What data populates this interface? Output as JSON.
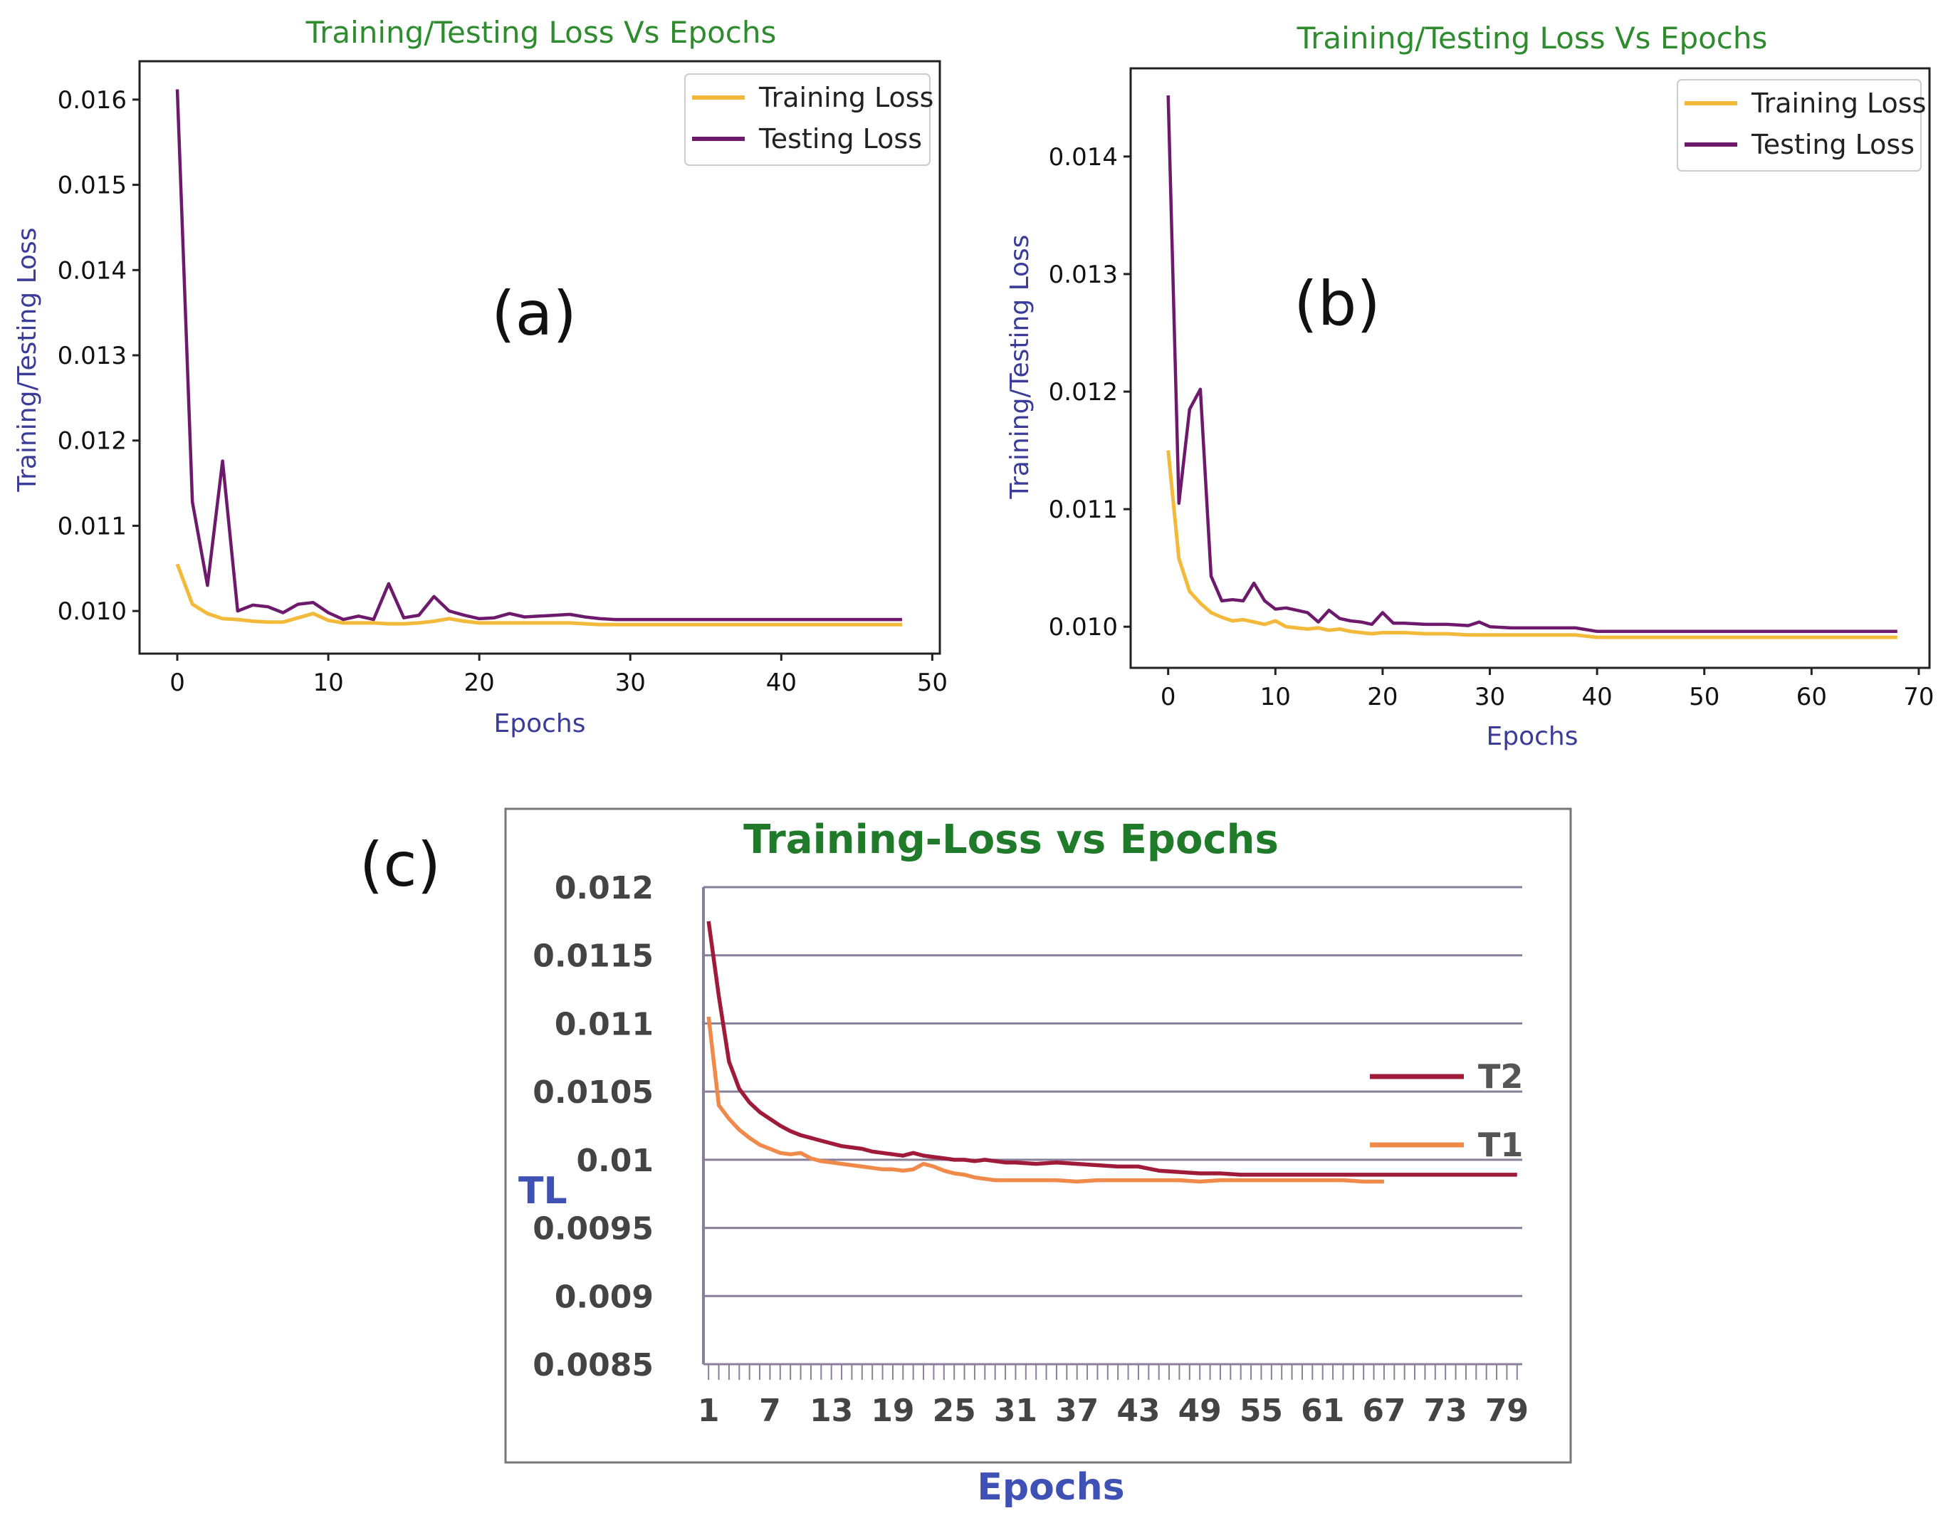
{
  "chart_data": [
    {
      "panel_label": "(a)",
      "type": "line",
      "title": "Training/Testing Loss Vs Epochs",
      "xlabel": "Epochs",
      "ylabel": "Training/Testing Loss",
      "xlim": [
        -2.5,
        50.5
      ],
      "ylim": [
        0.0095,
        0.01645
      ],
      "xticks": [
        0,
        10,
        20,
        30,
        40,
        50
      ],
      "xtick_labels": [
        "0",
        "10",
        "20",
        "30",
        "40",
        "50"
      ],
      "yticks": [
        0.01,
        0.011,
        0.012,
        0.013,
        0.014,
        0.015,
        0.016
      ],
      "ytick_labels": [
        "0.010",
        "0.011",
        "0.012",
        "0.013",
        "0.014",
        "0.015",
        "0.016"
      ],
      "legend": "top-right",
      "series": [
        {
          "name": "Training Loss",
          "color": "#f2b93b",
          "x": [
            0,
            1,
            2,
            3,
            4,
            5,
            6,
            7,
            8,
            9,
            10,
            11,
            12,
            13,
            14,
            15,
            16,
            17,
            18,
            19,
            20,
            21,
            22,
            23,
            24,
            25,
            26,
            27,
            28,
            29,
            30,
            32,
            34,
            36,
            38,
            40,
            42,
            44,
            46,
            48
          ],
          "y": [
            0.01055,
            0.01008,
            0.00997,
            0.00991,
            0.0099,
            0.00988,
            0.00987,
            0.00987,
            0.00992,
            0.00997,
            0.00989,
            0.00986,
            0.00986,
            0.00986,
            0.00985,
            0.00985,
            0.00986,
            0.00988,
            0.00991,
            0.00988,
            0.00986,
            0.00986,
            0.00986,
            0.00986,
            0.00986,
            0.00986,
            0.00986,
            0.00985,
            0.00984,
            0.00984,
            0.00984,
            0.00984,
            0.00984,
            0.00984,
            0.00984,
            0.00984,
            0.00984,
            0.00984,
            0.00984,
            0.00984
          ]
        },
        {
          "name": "Testing Loss",
          "color": "#6d1a6d",
          "x": [
            0,
            1,
            2,
            3,
            4,
            5,
            6,
            7,
            8,
            9,
            10,
            11,
            12,
            13,
            14,
            15,
            16,
            17,
            18,
            19,
            20,
            21,
            22,
            23,
            24,
            25,
            26,
            27,
            28,
            29,
            30,
            32,
            34,
            36,
            38,
            40,
            42,
            44,
            46,
            48
          ],
          "y": [
            0.01612,
            0.01128,
            0.0103,
            0.01176,
            0.01,
            0.01007,
            0.01005,
            0.00998,
            0.01008,
            0.0101,
            0.00998,
            0.0099,
            0.00994,
            0.0099,
            0.01032,
            0.00992,
            0.00995,
            0.01017,
            0.01,
            0.00995,
            0.00991,
            0.00992,
            0.00997,
            0.00993,
            0.00994,
            0.00995,
            0.00996,
            0.00993,
            0.00991,
            0.0099,
            0.0099,
            0.0099,
            0.0099,
            0.0099,
            0.0099,
            0.0099,
            0.0099,
            0.0099,
            0.0099,
            0.0099
          ]
        }
      ]
    },
    {
      "panel_label": "(b)",
      "type": "line",
      "title": "Training/Testing Loss Vs Epochs",
      "xlabel": "Epochs",
      "ylabel": "Training/Testing Loss",
      "xlim": [
        -3.5,
        71
      ],
      "ylim": [
        0.00965,
        0.01475
      ],
      "xticks": [
        0,
        10,
        20,
        30,
        40,
        50,
        60,
        70
      ],
      "xtick_labels": [
        "0",
        "10",
        "20",
        "30",
        "40",
        "50",
        "60",
        "70"
      ],
      "yticks": [
        0.01,
        0.011,
        0.012,
        0.013,
        0.014
      ],
      "ytick_labels": [
        "0.010",
        "0.011",
        "0.012",
        "0.013",
        "0.014"
      ],
      "legend": "top-right",
      "series": [
        {
          "name": "Training Loss",
          "color": "#f2b93b",
          "x": [
            0,
            1,
            2,
            3,
            4,
            5,
            6,
            7,
            8,
            9,
            10,
            11,
            12,
            13,
            14,
            15,
            16,
            17,
            18,
            19,
            20,
            22,
            24,
            26,
            28,
            30,
            32,
            34,
            36,
            38,
            40,
            45,
            50,
            55,
            60,
            65,
            68
          ],
          "y": [
            0.0115,
            0.01058,
            0.0103,
            0.0102,
            0.01012,
            0.01008,
            0.01005,
            0.01006,
            0.01004,
            0.01002,
            0.01005,
            0.01,
            0.00999,
            0.00998,
            0.00999,
            0.00997,
            0.00998,
            0.00996,
            0.00995,
            0.00994,
            0.00995,
            0.00995,
            0.00994,
            0.00994,
            0.00993,
            0.00993,
            0.00993,
            0.00993,
            0.00993,
            0.00993,
            0.00991,
            0.00991,
            0.00991,
            0.00991,
            0.00991,
            0.00991,
            0.00991
          ]
        },
        {
          "name": "Testing Loss",
          "color": "#6d1a6d",
          "x": [
            0,
            1,
            2,
            3,
            4,
            5,
            6,
            7,
            8,
            9,
            10,
            11,
            12,
            13,
            14,
            15,
            16,
            17,
            18,
            19,
            20,
            21,
            22,
            24,
            26,
            28,
            29,
            30,
            32,
            34,
            36,
            38,
            40,
            45,
            50,
            55,
            60,
            65,
            68
          ],
          "y": [
            0.01452,
            0.01105,
            0.01185,
            0.01202,
            0.01043,
            0.01022,
            0.01023,
            0.01022,
            0.01037,
            0.01022,
            0.01015,
            0.01016,
            0.01014,
            0.01012,
            0.01004,
            0.01014,
            0.01007,
            0.01005,
            0.01004,
            0.01002,
            0.01012,
            0.01003,
            0.01003,
            0.01002,
            0.01002,
            0.01001,
            0.01004,
            0.01,
            0.00999,
            0.00999,
            0.00999,
            0.00999,
            0.00996,
            0.00996,
            0.00996,
            0.00996,
            0.00996,
            0.00996,
            0.00996
          ]
        }
      ]
    },
    {
      "panel_label": "(c)",
      "type": "line",
      "title": "Training-Loss vs Epochs",
      "xlabel": "Epochs",
      "ylabel": "TL",
      "xlim": [
        0.5,
        80.5
      ],
      "ylim": [
        0.0085,
        0.012
      ],
      "xtick_labels": [
        "1",
        "7",
        "13",
        "19",
        "25",
        "31",
        "37",
        "43",
        "49",
        "55",
        "61",
        "67",
        "73",
        "79"
      ],
      "xtick_values": [
        1,
        7,
        13,
        19,
        25,
        31,
        37,
        43,
        49,
        55,
        61,
        67,
        73,
        79
      ],
      "yticks": [
        0.0085,
        0.009,
        0.0095,
        0.01,
        0.0105,
        0.011,
        0.0115,
        0.012
      ],
      "ytick_labels": [
        "0.0085",
        "0.009",
        "0.0095",
        "0.01",
        "0.0105",
        "0.011",
        "0.0115",
        "0.012"
      ],
      "legend": "right",
      "series": [
        {
          "name": "T2",
          "color": "#a01a3a",
          "x": [
            1,
            2,
            3,
            4,
            5,
            6,
            7,
            8,
            9,
            10,
            11,
            12,
            13,
            14,
            15,
            16,
            17,
            18,
            19,
            20,
            21,
            22,
            23,
            24,
            25,
            26,
            27,
            28,
            29,
            30,
            31,
            33,
            35,
            37,
            39,
            41,
            43,
            45,
            47,
            49,
            51,
            53,
            55,
            57,
            59,
            61,
            63,
            65,
            67,
            70,
            73,
            76,
            79,
            80
          ],
          "y": [
            0.01175,
            0.0112,
            0.01072,
            0.01052,
            0.01042,
            0.01035,
            0.0103,
            0.01025,
            0.01021,
            0.01018,
            0.01016,
            0.01014,
            0.01012,
            0.0101,
            0.01009,
            0.01008,
            0.01006,
            0.01005,
            0.01004,
            0.01003,
            0.01005,
            0.01003,
            0.01002,
            0.01001,
            0.01,
            0.01,
            0.00999,
            0.01,
            0.00999,
            0.00998,
            0.00998,
            0.00997,
            0.00998,
            0.00997,
            0.00996,
            0.00995,
            0.00995,
            0.00992,
            0.00991,
            0.0099,
            0.0099,
            0.00989,
            0.00989,
            0.00989,
            0.00989,
            0.00989,
            0.00989,
            0.00989,
            0.00989,
            0.00989,
            0.00989,
            0.00989,
            0.00989,
            0.00989
          ]
        },
        {
          "name": "T1",
          "color": "#f08a4b",
          "x": [
            1,
            2,
            3,
            4,
            5,
            6,
            7,
            8,
            9,
            10,
            11,
            12,
            13,
            14,
            15,
            16,
            17,
            18,
            19,
            20,
            21,
            22,
            23,
            24,
            25,
            26,
            27,
            28,
            29,
            30,
            31,
            33,
            35,
            37,
            39,
            41,
            43,
            45,
            47,
            49,
            51,
            53,
            55,
            57,
            59,
            61,
            63,
            65,
            67
          ],
          "y": [
            0.01105,
            0.0104,
            0.0103,
            0.01022,
            0.01016,
            0.01011,
            0.01008,
            0.01005,
            0.01004,
            0.01005,
            0.01001,
            0.00999,
            0.00998,
            0.00997,
            0.00996,
            0.00995,
            0.00994,
            0.00993,
            0.00993,
            0.00992,
            0.00993,
            0.00997,
            0.00995,
            0.00992,
            0.0099,
            0.00989,
            0.00987,
            0.00986,
            0.00985,
            0.00985,
            0.00985,
            0.00985,
            0.00985,
            0.00984,
            0.00985,
            0.00985,
            0.00985,
            0.00985,
            0.00985,
            0.00984,
            0.00985,
            0.00985,
            0.00985,
            0.00985,
            0.00985,
            0.00985,
            0.00985,
            0.00984,
            0.00984
          ]
        }
      ]
    }
  ]
}
